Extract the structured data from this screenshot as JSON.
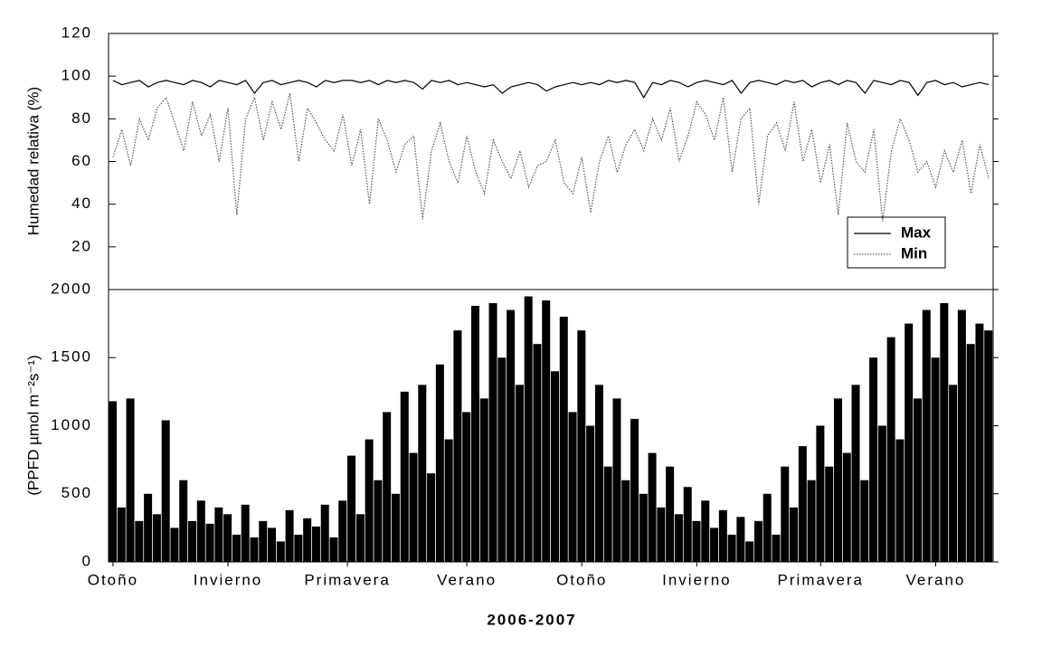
{
  "chart_data": [
    {
      "type": "line",
      "ylabel": "Humedad relativa (%)",
      "ylim": [
        0,
        120
      ],
      "yticks": [
        20,
        40,
        60,
        80,
        100,
        120
      ],
      "legend": "lower right",
      "series": [
        {
          "name": "Max",
          "color": "#000000",
          "dash": "solid",
          "values": [
            98,
            96,
            97,
            98,
            95,
            97,
            98,
            97,
            96,
            98,
            97,
            95,
            98,
            97,
            96,
            98,
            92,
            97,
            98,
            96,
            97,
            98,
            97,
            95,
            98,
            97,
            98,
            98,
            97,
            98,
            96,
            98,
            97,
            98,
            97,
            94,
            98,
            97,
            98,
            96,
            97,
            96,
            95,
            96,
            92,
            95,
            96,
            97,
            96,
            93,
            95,
            96,
            97,
            96,
            97,
            96,
            98,
            97,
            98,
            97,
            90,
            97,
            96,
            98,
            97,
            95,
            97,
            98,
            97,
            96,
            98,
            92,
            97,
            98,
            97,
            96,
            98,
            97,
            98,
            95,
            97,
            98,
            96,
            98,
            97,
            92,
            98,
            97,
            96,
            98,
            97,
            91,
            97,
            98,
            96,
            97,
            95,
            96,
            97,
            96
          ]
        },
        {
          "name": "Min",
          "color": "#555555",
          "dash": "dotted",
          "values": [
            62,
            75,
            58,
            80,
            70,
            85,
            90,
            78,
            65,
            88,
            72,
            82,
            60,
            85,
            35,
            80,
            90,
            70,
            88,
            75,
            92,
            60,
            85,
            78,
            70,
            65,
            82,
            58,
            75,
            40,
            80,
            70,
            55,
            68,
            72,
            33,
            65,
            78,
            60,
            50,
            72,
            55,
            45,
            70,
            60,
            52,
            65,
            48,
            58,
            60,
            70,
            50,
            45,
            62,
            36,
            60,
            72,
            55,
            68,
            75,
            65,
            80,
            70,
            85,
            60,
            72,
            88,
            82,
            70,
            90,
            55,
            80,
            85,
            40,
            72,
            78,
            65,
            88,
            60,
            75,
            50,
            68,
            35,
            78,
            60,
            55,
            75,
            32,
            65,
            80,
            70,
            55,
            60,
            48,
            65,
            55,
            70,
            45,
            68,
            52
          ]
        }
      ]
    },
    {
      "type": "bar",
      "ylabel": "(PPFD µmol m⁻²s⁻¹)",
      "xlabel": "2006-2007",
      "color": "#000000",
      "ylim": [
        0,
        2000
      ],
      "yticks": [
        0,
        500,
        1000,
        1500,
        2000
      ],
      "xticks": [
        {
          "value": 0,
          "label": "Otoño"
        },
        {
          "value": 13,
          "label": "Invierno"
        },
        {
          "value": 26.5,
          "label": "Primavera"
        },
        {
          "value": 40,
          "label": "Verano"
        },
        {
          "value": 53,
          "label": "Otoño"
        },
        {
          "value": 66,
          "label": "Invierno"
        },
        {
          "value": 80,
          "label": "Primavera"
        },
        {
          "value": 93,
          "label": "Verano"
        }
      ],
      "values": [
        1180,
        400,
        1200,
        300,
        500,
        350,
        1040,
        250,
        600,
        300,
        450,
        280,
        400,
        350,
        200,
        420,
        180,
        300,
        250,
        150,
        380,
        200,
        320,
        260,
        420,
        180,
        450,
        780,
        350,
        900,
        600,
        1100,
        500,
        1250,
        800,
        1300,
        650,
        1450,
        900,
        1700,
        1100,
        1880,
        1200,
        1900,
        1500,
        1850,
        1300,
        1950,
        1600,
        1920,
        1400,
        1800,
        1100,
        1700,
        1000,
        1300,
        700,
        1200,
        600,
        1050,
        500,
        800,
        400,
        700,
        350,
        550,
        300,
        450,
        250,
        380,
        200,
        330,
        150,
        300,
        500,
        200,
        700,
        400,
        850,
        600,
        1000,
        700,
        1200,
        800,
        1300,
        600,
        1500,
        1000,
        1650,
        900,
        1750,
        1200,
        1850,
        1500,
        1900,
        1300,
        1850,
        1600,
        1750,
        1700
      ]
    }
  ]
}
